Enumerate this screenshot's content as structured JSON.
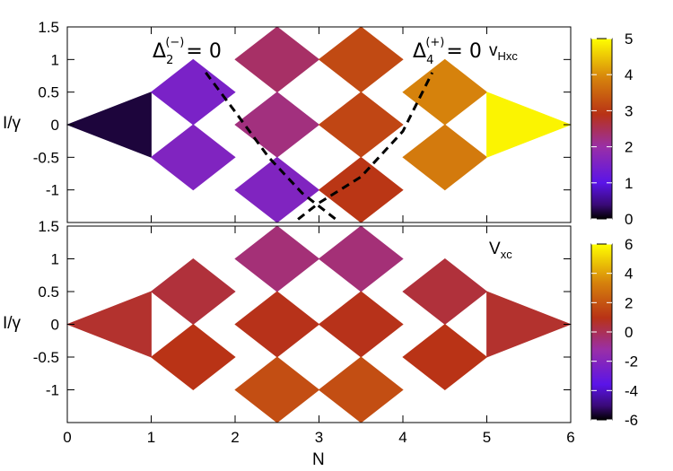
{
  "chart_data": [
    {
      "type": "heatmap",
      "panel": "top",
      "label": "v",
      "label_sub": "Hxc",
      "ylabel": "I/γ",
      "xlim": [
        0,
        6
      ],
      "ylim": [
        -1.5,
        1.5
      ],
      "yticks": [
        {
          "value": 1.5,
          "text": "1.5"
        },
        {
          "value": 1,
          "text": "1"
        },
        {
          "value": 0.5,
          "text": "0.5"
        },
        {
          "value": 0,
          "text": "0"
        },
        {
          "value": -0.5,
          "text": "-0.5"
        },
        {
          "value": -1,
          "text": "-1"
        }
      ],
      "colorbar": {
        "range": [
          0,
          5
        ],
        "ticks": [
          "0",
          "1",
          "2",
          "3",
          "4",
          "5"
        ]
      },
      "annotations": [
        {
          "main": "Δ",
          "sub": "2",
          "sup": "(−)",
          "tail": "= 0"
        },
        {
          "main": "Δ",
          "sub": "4",
          "sup": "(+)",
          "tail": "= 0"
        }
      ],
      "dashed_curves": [
        [
          [
            1.65,
            0.8
          ],
          [
            2.0,
            0.2
          ],
          [
            2.4,
            -0.5
          ],
          [
            2.8,
            -1.05
          ],
          [
            3.2,
            -1.45
          ]
        ],
        [
          [
            2.75,
            -1.45
          ],
          [
            3.0,
            -1.2
          ],
          [
            3.5,
            -0.8
          ],
          [
            4.0,
            -0.1
          ],
          [
            4.35,
            0.8
          ]
        ]
      ],
      "cells": [
        {
          "n": [
            0,
            1
          ],
          "l": [
            -0.5,
            0.5
          ],
          "v": 0.2
        },
        {
          "n": [
            1,
            2
          ],
          "l": [
            0,
            1
          ],
          "v": 1.5
        },
        {
          "n": [
            1,
            2
          ],
          "l": [
            -1,
            0
          ],
          "v": 1.6
        },
        {
          "n": [
            2,
            3
          ],
          "l": [
            0.5,
            1.5
          ],
          "v": 2.4
        },
        {
          "n": [
            2,
            3
          ],
          "l": [
            -0.5,
            0.5
          ],
          "v": 2.25
        },
        {
          "n": [
            2,
            3
          ],
          "l": [
            -1.5,
            -0.5
          ],
          "v": 1.6
        },
        {
          "n": [
            3,
            4
          ],
          "l": [
            0.5,
            1.5
          ],
          "v": 3.2
        },
        {
          "n": [
            3,
            4
          ],
          "l": [
            -0.5,
            0.5
          ],
          "v": 3.15
        },
        {
          "n": [
            3,
            4
          ],
          "l": [
            -1.5,
            -0.5
          ],
          "v": 2.95
        },
        {
          "n": [
            4,
            5
          ],
          "l": [
            0,
            1
          ],
          "v": 3.9
        },
        {
          "n": [
            4,
            5
          ],
          "l": [
            -1,
            0
          ],
          "v": 3.8
        },
        {
          "n": [
            5,
            6
          ],
          "l": [
            -0.5,
            0.5
          ],
          "v": 4.9
        }
      ]
    },
    {
      "type": "heatmap",
      "panel": "bottom",
      "label": "V",
      "label_sub": "xc",
      "xlabel": "N",
      "ylabel": "I/γ",
      "xlim": [
        0,
        6
      ],
      "ylim": [
        -1.5,
        1.5
      ],
      "xticks": [
        "0",
        "1",
        "2",
        "3",
        "4",
        "5",
        "6"
      ],
      "yticks": [
        {
          "value": 1.5,
          "text": "1.5"
        },
        {
          "value": 1,
          "text": "1"
        },
        {
          "value": 0.5,
          "text": "0.5"
        },
        {
          "value": 0,
          "text": "0"
        },
        {
          "value": -0.5,
          "text": "-0.5"
        },
        {
          "value": -1,
          "text": "-1"
        }
      ],
      "colorbar": {
        "range": [
          -6,
          6
        ],
        "ticks": [
          "6",
          "4",
          "2",
          "0",
          "-2",
          "-4",
          "-6"
        ]
      },
      "cells": [
        {
          "n": [
            0,
            1
          ],
          "l": [
            -0.5,
            0.5
          ],
          "v": 0.6
        },
        {
          "n": [
            1,
            2
          ],
          "l": [
            0,
            1
          ],
          "v": 0.4
        },
        {
          "n": [
            1,
            2
          ],
          "l": [
            -1,
            0
          ],
          "v": 1.0
        },
        {
          "n": [
            2,
            3
          ],
          "l": [
            0.5,
            1.5
          ],
          "v": -0.5
        },
        {
          "n": [
            2,
            3
          ],
          "l": [
            -0.5,
            0.5
          ],
          "v": 0.9
        },
        {
          "n": [
            2,
            3
          ],
          "l": [
            -1.5,
            -0.5
          ],
          "v": 1.8
        },
        {
          "n": [
            3,
            4
          ],
          "l": [
            0.5,
            1.5
          ],
          "v": -0.5
        },
        {
          "n": [
            3,
            4
          ],
          "l": [
            -0.5,
            0.5
          ],
          "v": 0.9
        },
        {
          "n": [
            3,
            4
          ],
          "l": [
            -1.5,
            -0.5
          ],
          "v": 1.8
        },
        {
          "n": [
            4,
            5
          ],
          "l": [
            0,
            1
          ],
          "v": 0.4
        },
        {
          "n": [
            4,
            5
          ],
          "l": [
            -1,
            0
          ],
          "v": 1.0
        },
        {
          "n": [
            5,
            6
          ],
          "l": [
            -0.5,
            0.5
          ],
          "v": 0.6
        }
      ]
    }
  ]
}
